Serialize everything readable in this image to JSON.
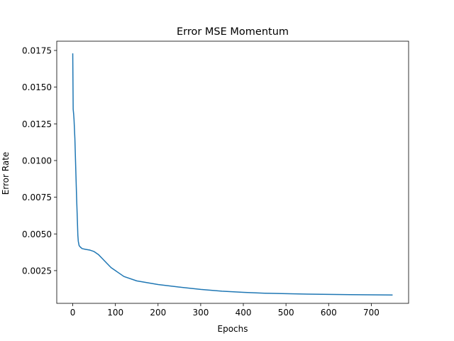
{
  "chart_data": {
    "type": "line",
    "title": "Error MSE Momentum",
    "xlabel": "Epochs",
    "ylabel": "Error Rate",
    "xlim": [
      -37.5,
      787.5
    ],
    "ylim": [
      0.00027,
      0.01813
    ],
    "xticks": [
      0,
      100,
      200,
      300,
      400,
      500,
      600,
      700
    ],
    "yticks": [
      0.0025,
      0.005,
      0.0075,
      0.01,
      0.0125,
      0.015,
      0.0175
    ],
    "ytick_labels": [
      "0.0025",
      "0.0050",
      "0.0075",
      "0.0100",
      "0.0125",
      "0.0150",
      "0.0175"
    ],
    "grid": false,
    "series": [
      {
        "color": "#1f77b4",
        "x": [
          0,
          1,
          2,
          3,
          5,
          7,
          9,
          11,
          12,
          13,
          15,
          18,
          22,
          30,
          40,
          50,
          60,
          70,
          80,
          90,
          100,
          120,
          150,
          200,
          250,
          300,
          350,
          400,
          450,
          500,
          550,
          600,
          650,
          700,
          750
        ],
        "y": [
          0.0173,
          0.0135,
          0.0132,
          0.0128,
          0.0115,
          0.0095,
          0.0075,
          0.0058,
          0.0049,
          0.0045,
          0.0042,
          0.0041,
          0.004,
          0.00395,
          0.0039,
          0.0038,
          0.0036,
          0.0033,
          0.003,
          0.0027,
          0.0025,
          0.0021,
          0.0018,
          0.00155,
          0.00138,
          0.00122,
          0.0011,
          0.00102,
          0.00096,
          0.00093,
          0.0009,
          0.00088,
          0.00086,
          0.00085,
          0.00084
        ]
      }
    ]
  }
}
